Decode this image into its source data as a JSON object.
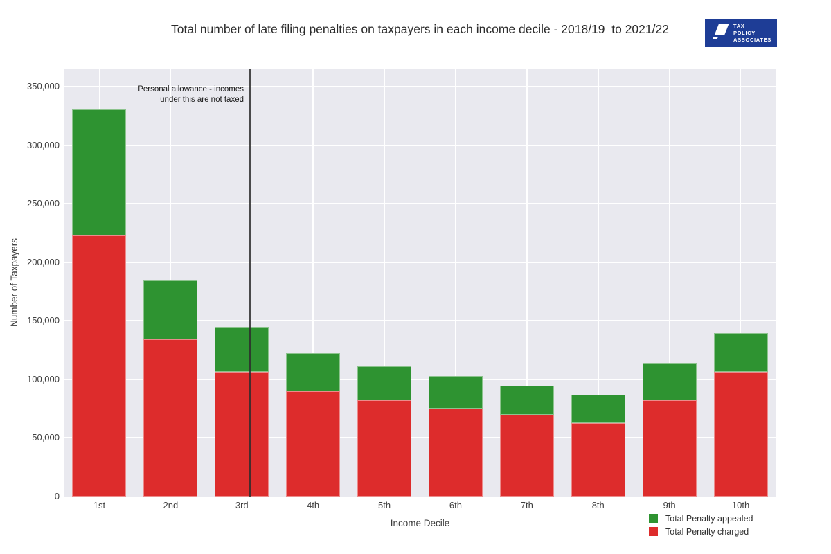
{
  "header": {
    "title": "Total number of late filing penalties on taxpayers in each income decile - 2018/19  to 2021/22",
    "logo": {
      "line1": "TAX",
      "line2": "POLICY",
      "line3": "ASSOCIATES",
      "bg_color": "#1e3d96"
    }
  },
  "chart_data": {
    "type": "bar",
    "stacked": true,
    "title": "Total number of late filing penalties on taxpayers in each income decile - 2018/19  to 2021/22",
    "xlabel": "Income Decile",
    "ylabel": "Number of Taxpayers",
    "categories": [
      "1st",
      "2nd",
      "3rd",
      "4th",
      "5th",
      "6th",
      "7th",
      "8th",
      "9th",
      "10th"
    ],
    "series": [
      {
        "name": "Total Penalty charged",
        "color": "#dd2c2c",
        "values": [
          223000,
          134000,
          106500,
          90000,
          82500,
          75000,
          70000,
          63000,
          82500,
          106500
        ]
      },
      {
        "name": "Total Penalty appealed",
        "color": "#2e9331",
        "values": [
          107500,
          50000,
          38500,
          32500,
          29000,
          28000,
          25000,
          24000,
          32000,
          33000
        ]
      }
    ],
    "ylim": [
      0,
      365000
    ],
    "yticks": [
      {
        "v": 0,
        "label": "0"
      },
      {
        "v": 50000,
        "label": "50,000"
      },
      {
        "v": 100000,
        "label": "100,000"
      },
      {
        "v": 150000,
        "label": "150,000"
      },
      {
        "v": 200000,
        "label": "200,000"
      },
      {
        "v": 250000,
        "label": "250,000"
      },
      {
        "v": 300000,
        "label": "300,000"
      },
      {
        "v": 350000,
        "label": "350,000"
      }
    ],
    "grid": true,
    "plot_bg": "#e9e9ef",
    "grid_color": "#ffffff",
    "legend_position": "bottom-right",
    "annotation": {
      "line1": "Personal allowance - incomes",
      "line2": "under this are not taxed",
      "vline_x_fraction": 0.2614,
      "vline_color": "rgba(45,45,45,0.85)"
    }
  },
  "legend": {
    "items": [
      {
        "label": "Total Penalty appealed",
        "color": "#2e9331"
      },
      {
        "label": "Total Penalty charged",
        "color": "#dd2c2c"
      }
    ]
  }
}
